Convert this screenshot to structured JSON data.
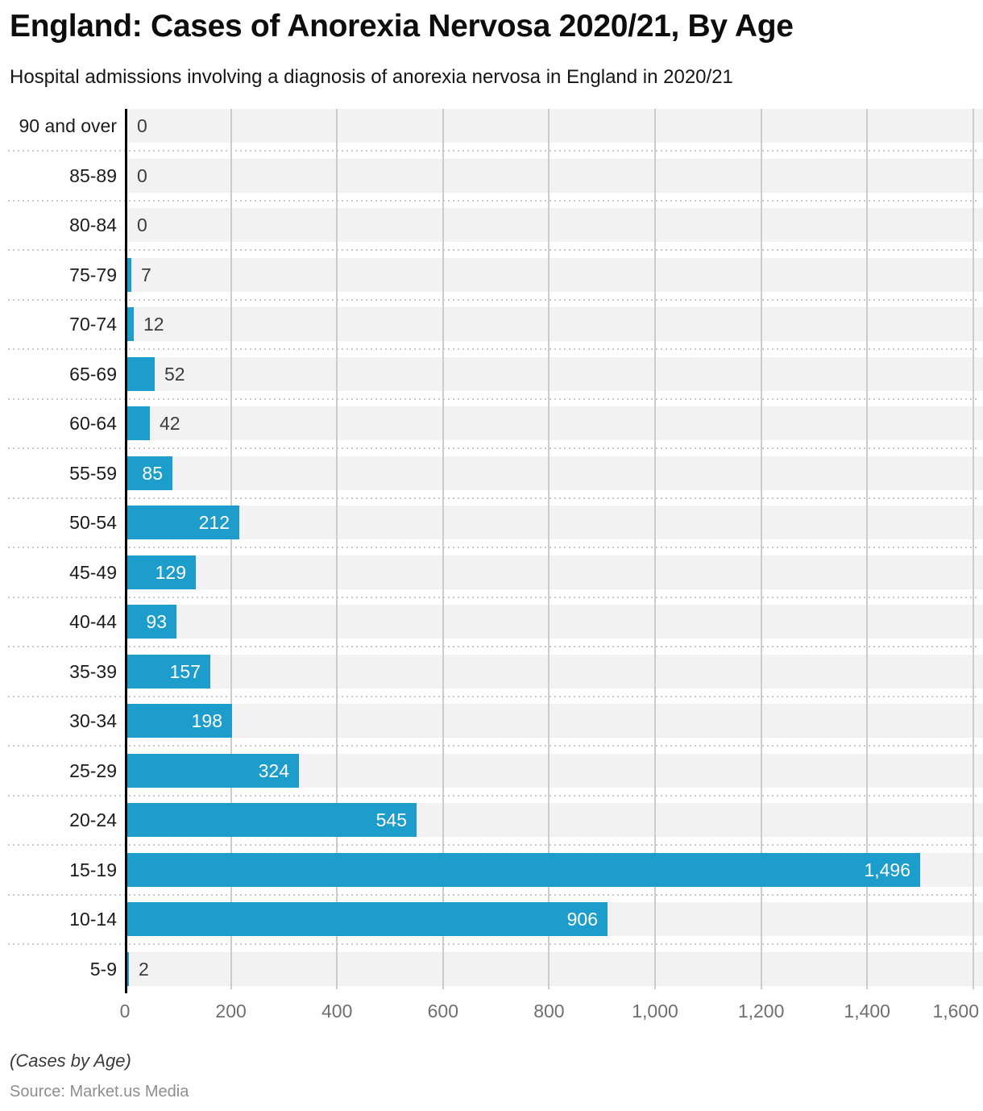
{
  "header": {
    "title": "England: Cases of Anorexia Nervosa 2020/21, By Age",
    "subtitle": "Hospital admissions involving a diagnosis of anorexia nervosa in England in 2020/21"
  },
  "chart_data": {
    "type": "bar",
    "orientation": "horizontal",
    "title": "England: Cases of Anorexia Nervosa 2020/21, By Age",
    "categories": [
      "90 and over",
      "85-89",
      "80-84",
      "75-79",
      "70-74",
      "65-69",
      "60-64",
      "55-59",
      "50-54",
      "45-49",
      "40-44",
      "35-39",
      "30-34",
      "25-29",
      "20-24",
      "15-19",
      "10-14",
      "5-9"
    ],
    "values": [
      0,
      0,
      0,
      7,
      12,
      52,
      42,
      85,
      212,
      129,
      93,
      157,
      198,
      324,
      545,
      1496,
      906,
      2
    ],
    "value_labels": [
      "0",
      "0",
      "0",
      "7",
      "12",
      "52",
      "42",
      "85",
      "212",
      "129",
      "93",
      "157",
      "198",
      "324",
      "545",
      "1,496",
      "906",
      "2"
    ],
    "xlabel": "",
    "ylabel": "",
    "xlim": [
      0,
      1600
    ],
    "x_ticks": [
      0,
      200,
      400,
      600,
      800,
      1000,
      1200,
      1400,
      1600
    ],
    "x_tick_labels": [
      "0",
      "200",
      "400",
      "600",
      "800",
      "1,000",
      "1,200",
      "1,400",
      "1,600"
    ],
    "grid": true,
    "legend": false,
    "colors": {
      "bar": "#1c9dcc",
      "band": "#f2f2f2",
      "grid": "#cccccc",
      "axis": "#000000",
      "label_inside": "#ffffff",
      "label_outside": "#3c3c3c",
      "tick": "#6f6f6f"
    }
  },
  "footer": {
    "note": "(Cases by Age)",
    "source": "Source: Market.us Media"
  }
}
